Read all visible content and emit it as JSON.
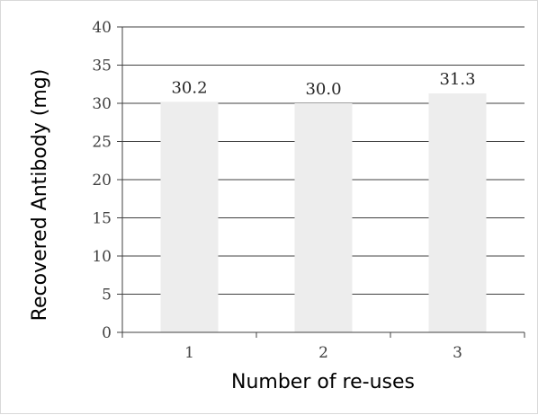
{
  "chart_data": {
    "type": "bar",
    "categories": [
      "1",
      "2",
      "3"
    ],
    "values": [
      30.2,
      30.0,
      31.3
    ],
    "data_labels": [
      "30.2",
      "30.0",
      "31.3"
    ],
    "title": "",
    "xlabel": "Number of re-uses",
    "ylabel": "Recovered Antibody (mg)",
    "ylim": [
      0,
      40
    ],
    "yticks": [
      "0",
      "5",
      "10",
      "15",
      "20",
      "25",
      "30",
      "35",
      "40"
    ],
    "grid": true,
    "legend": "none",
    "bar_color": "#ededed",
    "gridline_color": "#404040"
  }
}
